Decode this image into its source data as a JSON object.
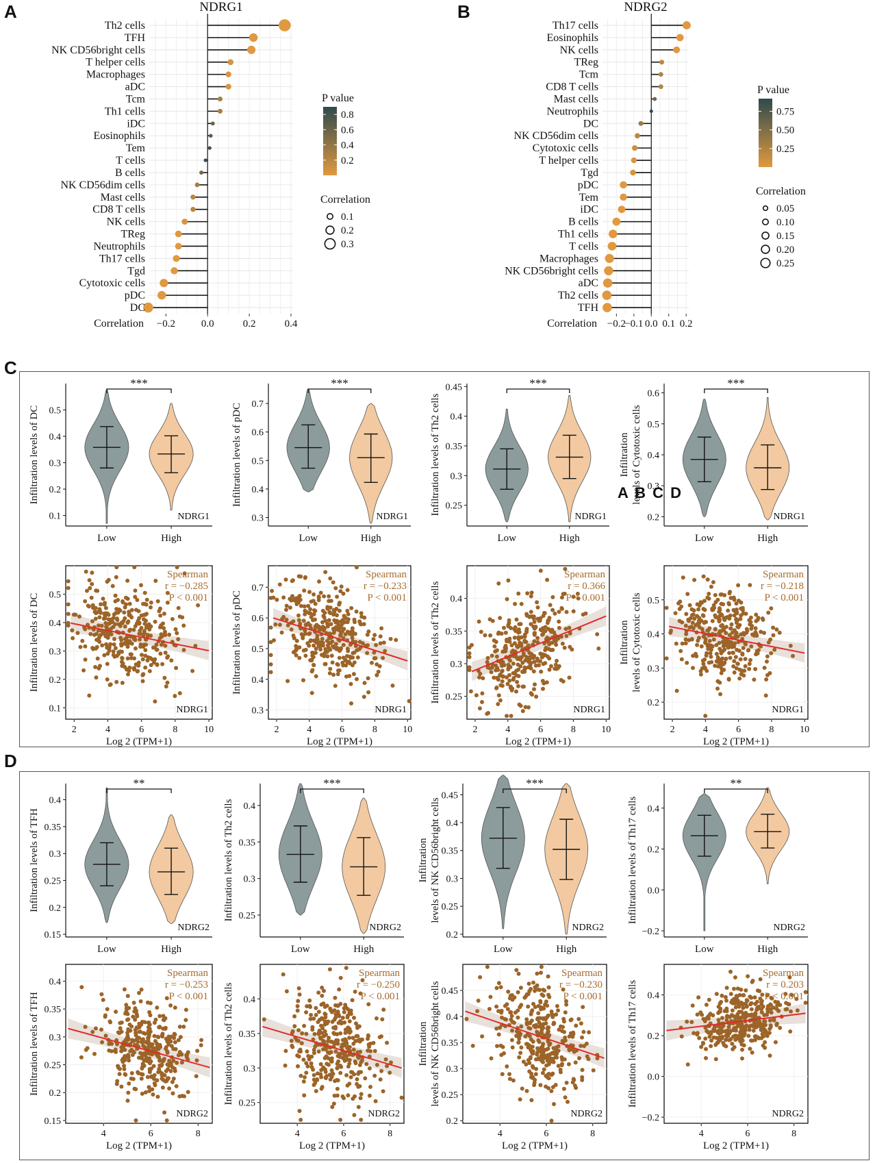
{
  "figure": {
    "panel_labels": [
      "A",
      "B",
      "C",
      "D"
    ],
    "stray_text": "A B C D"
  },
  "colors": {
    "p_high": "#2f4a4e",
    "p_low": "#e0993f",
    "violin_low": "#8c9b9b",
    "violin_high": "#f2c9a0",
    "scatter_point": "#9c6428",
    "fit_line": "#e32a2a",
    "fit_band": "#e6ddd6",
    "stats_text": "#a56b2c"
  },
  "lollipop_A": {
    "title": "NDRG1",
    "xlabel": "Correlation",
    "ticks": [
      -0.2,
      0.0,
      0.2,
      0.4
    ],
    "tick_labels": [
      "−0.2",
      "0.0",
      "0.2",
      "0.4"
    ],
    "xlim": [
      -0.28,
      0.41
    ],
    "legend_p_title": "P value",
    "legend_p_ticks": [
      "0.8",
      "0.6",
      "0.4",
      "0.2"
    ],
    "legend_p_tick_values": [
      0.8,
      0.6,
      0.4,
      0.2
    ],
    "legend_p_range": [
      0.0,
      0.9
    ],
    "legend_corr_title": "Correlation",
    "legend_corr_labels": [
      "0.1",
      "0.2",
      "0.3"
    ],
    "legend_corr_values": [
      0.1,
      0.2,
      0.3
    ],
    "chart_data": {
      "type": "lollipop",
      "categories": [
        "Th2 cells",
        "TFH",
        "NK CD56bright cells",
        "T helper cells",
        "Macrophages",
        "aDC",
        "Tcm",
        "Th1 cells",
        "iDC",
        "Eosinophils",
        "Tem",
        "T cells",
        "B cells",
        "NK CD56dim cells",
        "Mast cells",
        "CD8 T cells",
        "NK cells",
        "TReg",
        "Neutrophils",
        "Th17 cells",
        "Tgd",
        "Cytotoxic cells",
        "pDC",
        "DC"
      ],
      "values": [
        0.37,
        0.22,
        0.21,
        0.11,
        0.1,
        0.1,
        0.06,
        0.06,
        0.025,
        0.015,
        0.01,
        -0.01,
        -0.03,
        -0.05,
        -0.07,
        -0.07,
        -0.11,
        -0.14,
        -0.14,
        -0.15,
        -0.16,
        -0.21,
        -0.22,
        -0.285
      ],
      "pvalues": [
        0.0,
        0.0,
        0.0,
        0.05,
        0.05,
        0.05,
        0.3,
        0.3,
        0.6,
        0.7,
        0.8,
        0.85,
        0.55,
        0.3,
        0.2,
        0.2,
        0.05,
        0.0,
        0.0,
        0.0,
        0.0,
        0.0,
        0.0,
        0.0
      ]
    }
  },
  "lollipop_B": {
    "title": "NDRG2",
    "xlabel": "Correlation",
    "ticks": [
      -0.2,
      -0.1,
      0.0,
      0.1,
      0.2
    ],
    "tick_labels": [
      "−0.2",
      "−0.1",
      "0.0",
      "0.1",
      "0.2"
    ],
    "xlim": [
      -0.28,
      0.215
    ],
    "legend_p_title": "P value",
    "legend_p_ticks": [
      "0.75",
      "0.50",
      "0.25"
    ],
    "legend_p_tick_values": [
      0.75,
      0.5,
      0.25
    ],
    "legend_p_range": [
      0.0,
      0.92
    ],
    "legend_corr_title": "Correlation",
    "legend_corr_labels": [
      "0.05",
      "0.10",
      "0.15",
      "0.20",
      "0.25"
    ],
    "legend_corr_values": [
      0.05,
      0.1,
      0.15,
      0.2,
      0.25
    ],
    "chart_data": {
      "type": "lollipop",
      "categories": [
        "Th17 cells",
        "Eosinophils",
        "NK cells",
        "TReg",
        "Tcm",
        "CD8 T cells",
        "Mast cells",
        "Neutrophils",
        "DC",
        "NK CD56dim cells",
        "Cytotoxic cells",
        "T helper cells",
        "Tgd",
        "pDC",
        "Tem",
        "iDC",
        "B cells",
        "Th1 cells",
        "T cells",
        "Macrophages",
        "NK CD56bright cells",
        "aDC",
        "Th2 cells",
        "TFH"
      ],
      "values": [
        0.203,
        0.165,
        0.145,
        0.06,
        0.055,
        0.055,
        0.02,
        0.0,
        -0.06,
        -0.08,
        -0.095,
        -0.1,
        -0.105,
        -0.16,
        -0.16,
        -0.17,
        -0.2,
        -0.22,
        -0.225,
        -0.24,
        -0.245,
        -0.25,
        -0.255,
        -0.253
      ],
      "pvalues": [
        0.0,
        0.0,
        0.0,
        0.2,
        0.25,
        0.25,
        0.6,
        0.92,
        0.35,
        0.2,
        0.1,
        0.05,
        0.05,
        0.0,
        0.0,
        0.0,
        0.0,
        0.0,
        0.0,
        0.0,
        0.0,
        0.0,
        0.0,
        0.0
      ]
    }
  },
  "violins_C": [
    {
      "ylabel": "Infiltration levels of DC",
      "ylabel2": "",
      "sig": "***",
      "gene": "NDRG1",
      "groups": [
        "Low",
        "High"
      ],
      "ticks": [
        0.1,
        0.2,
        0.3,
        0.4,
        0.5
      ],
      "ylim": [
        0.06,
        0.6
      ],
      "chart_data": {
        "type": "violin",
        "groups": [
          "Low",
          "High"
        ],
        "mean": [
          0.358,
          0.333
        ],
        "sd_low": [
          0.28,
          0.262
        ],
        "sd_high": [
          0.437,
          0.402
        ],
        "min": [
          0.07,
          0.12
        ],
        "max": [
          0.575,
          0.525
        ]
      }
    },
    {
      "ylabel": "Infiltration levels of pDC",
      "ylabel2": "",
      "sig": "***",
      "gene": "NDRG1",
      "groups": [
        "Low",
        "High"
      ],
      "ticks": [
        0.3,
        0.4,
        0.5,
        0.6,
        0.7
      ],
      "ylim": [
        0.27,
        0.77
      ],
      "chart_data": {
        "type": "violin",
        "groups": [
          "Low",
          "High"
        ],
        "mean": [
          0.545,
          0.51
        ],
        "sd_low": [
          0.473,
          0.423
        ],
        "sd_high": [
          0.625,
          0.593
        ],
        "min": [
          0.39,
          0.28
        ],
        "max": [
          0.75,
          0.7
        ]
      }
    },
    {
      "ylabel": "Infiltration levels of Th2 cells",
      "ylabel2": "",
      "sig": "***",
      "gene": "NDRG1",
      "groups": [
        "Low",
        "High"
      ],
      "ticks": [
        0.25,
        0.3,
        0.35,
        0.4,
        0.45
      ],
      "ylim": [
        0.215,
        0.455
      ],
      "chart_data": {
        "type": "violin",
        "groups": [
          "Low",
          "High"
        ],
        "mean": [
          0.311,
          0.331
        ],
        "sd_low": [
          0.277,
          0.295
        ],
        "sd_high": [
          0.345,
          0.368
        ],
        "min": [
          0.222,
          0.222
        ],
        "max": [
          0.412,
          0.435
        ]
      }
    },
    {
      "ylabel": "Infiltration",
      "ylabel2": "levels of Cytotoxic cells",
      "sig": "***",
      "gene": "NDRG1",
      "groups": [
        "Low",
        "High"
      ],
      "ticks": [
        0.2,
        0.3,
        0.4,
        0.5,
        0.6
      ],
      "ylim": [
        0.17,
        0.63
      ],
      "chart_data": {
        "type": "violin",
        "groups": [
          "Low",
          "High"
        ],
        "mean": [
          0.385,
          0.358
        ],
        "sd_low": [
          0.313,
          0.288
        ],
        "sd_high": [
          0.457,
          0.432
        ],
        "min": [
          0.2,
          0.19
        ],
        "max": [
          0.58,
          0.585
        ]
      }
    }
  ],
  "scatters_C": [
    {
      "ylabel": "Infiltration levels of DC",
      "ylabel2": "",
      "xlabel": "Log 2 (TPM+1)",
      "gene": "NDRG1",
      "stat_title": "Spearman",
      "r_text": "r = −0.285",
      "p_text": "P < 0.001",
      "xticks": [
        2,
        4,
        6,
        8,
        10
      ],
      "yticks": [
        0.1,
        0.2,
        0.3,
        0.4,
        0.5
      ],
      "xlim": [
        1.5,
        10.2
      ],
      "ylim": [
        0.06,
        0.6
      ],
      "chart_data": {
        "type": "scatter",
        "spearman_r": -0.285,
        "fit": {
          "x": [
            1.8,
            10
          ],
          "y": [
            0.398,
            0.301
          ]
        },
        "center": [
          5.0,
          0.37
        ],
        "spread": [
          1.5,
          0.085
        ],
        "n": 360,
        "seed": 11
      }
    },
    {
      "ylabel": "Infiltration levels of pDC",
      "ylabel2": "",
      "xlabel": "Log 2 (TPM+1)",
      "gene": "NDRG1",
      "stat_title": "Spearman",
      "r_text": "r = −0.233",
      "p_text": "P < 0.001",
      "xticks": [
        2,
        4,
        6,
        8,
        10
      ],
      "yticks": [
        0.3,
        0.4,
        0.5,
        0.6,
        0.7
      ],
      "xlim": [
        1.5,
        10.2
      ],
      "ylim": [
        0.27,
        0.77
      ],
      "chart_data": {
        "type": "scatter",
        "spearman_r": -0.233,
        "fit": {
          "x": [
            1.8,
            10
          ],
          "y": [
            0.6,
            0.46
          ]
        },
        "center": [
          5.0,
          0.53
        ],
        "spread": [
          1.5,
          0.08
        ],
        "n": 360,
        "seed": 23
      }
    },
    {
      "ylabel": "Infiltration levels of Th2 cells",
      "ylabel2": "",
      "xlabel": "Log 2 (TPM+1)",
      "gene": "NDRG1",
      "stat_title": "Spearman",
      "r_text": "r = 0.366",
      "p_text": "P < 0.001",
      "xticks": [
        2,
        4,
        6,
        8,
        10
      ],
      "yticks": [
        0.25,
        0.3,
        0.35,
        0.4
      ],
      "xlim": [
        1.5,
        10.2
      ],
      "ylim": [
        0.215,
        0.45
      ],
      "chart_data": {
        "type": "scatter",
        "spearman_r": 0.366,
        "fit": {
          "x": [
            1.8,
            10
          ],
          "y": [
            0.288,
            0.373
          ]
        },
        "center": [
          5.2,
          0.322
        ],
        "spread": [
          1.5,
          0.038
        ],
        "n": 360,
        "seed": 37
      }
    },
    {
      "ylabel": "Infiltration",
      "ylabel2": "levels of Cytotoxic cells",
      "xlabel": "Log 2 (TPM+1)",
      "gene": "NDRG1",
      "stat_title": "Spearman",
      "r_text": "r = −0.218",
      "p_text": "P < 0.001",
      "xticks": [
        2,
        4,
        6,
        8,
        10
      ],
      "yticks": [
        0.2,
        0.3,
        0.4,
        0.5
      ],
      "xlim": [
        1.5,
        10.2
      ],
      "ylim": [
        0.15,
        0.6
      ],
      "chart_data": {
        "type": "scatter",
        "spearman_r": -0.218,
        "fit": {
          "x": [
            1.8,
            10
          ],
          "y": [
            0.422,
            0.344
          ]
        },
        "center": [
          5.0,
          0.39
        ],
        "spread": [
          1.5,
          0.07
        ],
        "n": 360,
        "seed": 49
      }
    }
  ],
  "violins_D": [
    {
      "ylabel": "Infiltration levels of TFH",
      "ylabel2": "",
      "sig": "**",
      "gene": "NDRG2",
      "groups": [
        "Low",
        "High"
      ],
      "ticks": [
        0.15,
        0.2,
        0.25,
        0.3,
        0.35,
        0.4
      ],
      "ylim": [
        0.145,
        0.43
      ],
      "chart_data": {
        "type": "violin",
        "groups": [
          "Low",
          "High"
        ],
        "mean": [
          0.28,
          0.266
        ],
        "sd_low": [
          0.24,
          0.224
        ],
        "sd_high": [
          0.32,
          0.31
        ],
        "min": [
          0.172,
          0.17
        ],
        "max": [
          0.422,
          0.372
        ]
      }
    },
    {
      "ylabel": "Infiltration levels of Th2 cells",
      "ylabel2": "",
      "sig": "***",
      "gene": "NDRG2",
      "groups": [
        "Low",
        "High"
      ],
      "ticks": [
        0.25,
        0.3,
        0.35,
        0.4
      ],
      "ylim": [
        0.22,
        0.43
      ],
      "chart_data": {
        "type": "violin",
        "groups": [
          "Low",
          "High"
        ],
        "mean": [
          0.333,
          0.316
        ],
        "sd_low": [
          0.295,
          0.277
        ],
        "sd_high": [
          0.372,
          0.356
        ],
        "min": [
          0.25,
          0.225
        ],
        "max": [
          0.43,
          0.41
        ]
      }
    },
    {
      "ylabel": "Infiltration",
      "ylabel2": "levels of NK CD56bright cells",
      "sig": "***",
      "gene": "NDRG2",
      "groups": [
        "Low",
        "High"
      ],
      "ticks": [
        0.2,
        0.25,
        0.3,
        0.35,
        0.4,
        0.45
      ],
      "ylim": [
        0.195,
        0.47
      ],
      "chart_data": {
        "type": "violin",
        "groups": [
          "Low",
          "High"
        ],
        "mean": [
          0.372,
          0.352
        ],
        "sd_low": [
          0.318,
          0.298
        ],
        "sd_high": [
          0.427,
          0.406
        ],
        "min": [
          0.21,
          0.2
        ],
        "max": [
          0.485,
          0.47
        ]
      }
    },
    {
      "ylabel": "Infiltration levels of Th17 cells",
      "ylabel2": "",
      "sig": "**",
      "gene": "NDRG2",
      "groups": [
        "Low",
        "High"
      ],
      "ticks": [
        -0.2,
        0.0,
        0.2,
        0.4
      ],
      "ylim": [
        -0.23,
        0.52
      ],
      "chart_data": {
        "type": "violin",
        "groups": [
          "Low",
          "High"
        ],
        "mean": [
          0.265,
          0.285
        ],
        "sd_low": [
          0.165,
          0.205
        ],
        "sd_high": [
          0.365,
          0.37
        ],
        "min": [
          -0.2,
          0.03
        ],
        "max": [
          0.47,
          0.5
        ]
      }
    }
  ],
  "scatters_D": [
    {
      "ylabel": "Infiltration levels of TFH",
      "ylabel2": "",
      "xlabel": "Log 2 (TPM+1)",
      "gene": "NDRG2",
      "stat_title": "Spearman",
      "r_text": "r = −0.253",
      "p_text": "P < 0.001",
      "xticks": [
        4,
        6,
        8
      ],
      "yticks": [
        0.15,
        0.2,
        0.25,
        0.3,
        0.35,
        0.4
      ],
      "xlim": [
        2.4,
        8.6
      ],
      "ylim": [
        0.145,
        0.43
      ],
      "chart_data": {
        "type": "scatter",
        "spearman_r": -0.253,
        "fit": {
          "x": [
            2.5,
            8.5
          ],
          "y": [
            0.315,
            0.245
          ]
        },
        "center": [
          5.7,
          0.275
        ],
        "spread": [
          1.0,
          0.04
        ],
        "n": 360,
        "seed": 61
      }
    },
    {
      "ylabel": "Infiltration levels of Th2 cells",
      "ylabel2": "",
      "xlabel": "Log 2 (TPM+1)",
      "gene": "NDRG2",
      "stat_title": "Spearman",
      "r_text": "r = −0.250",
      "p_text": "P < 0.001",
      "xticks": [
        4,
        6,
        8
      ],
      "yticks": [
        0.25,
        0.3,
        0.35,
        0.4
      ],
      "xlim": [
        2.4,
        8.6
      ],
      "ylim": [
        0.22,
        0.45
      ],
      "chart_data": {
        "type": "scatter",
        "spearman_r": -0.25,
        "fit": {
          "x": [
            2.5,
            8.5
          ],
          "y": [
            0.36,
            0.3
          ]
        },
        "center": [
          5.7,
          0.325
        ],
        "spread": [
          1.0,
          0.04
        ],
        "n": 360,
        "seed": 73
      }
    },
    {
      "ylabel": "Infiltration",
      "ylabel2": "levels of NK CD56bright cells",
      "xlabel": "Log 2 (TPM+1)",
      "gene": "NDRG2",
      "stat_title": "Spearman",
      "r_text": "r = −0.230",
      "p_text": "P < 0.001",
      "xticks": [
        4,
        6,
        8
      ],
      "yticks": [
        0.2,
        0.25,
        0.3,
        0.35,
        0.4,
        0.45
      ],
      "xlim": [
        2.4,
        8.6
      ],
      "ylim": [
        0.195,
        0.5
      ],
      "chart_data": {
        "type": "scatter",
        "spearman_r": -0.23,
        "fit": {
          "x": [
            2.5,
            8.5
          ],
          "y": [
            0.41,
            0.32
          ]
        },
        "center": [
          5.7,
          0.36
        ],
        "spread": [
          1.0,
          0.05
        ],
        "n": 360,
        "seed": 89
      }
    },
    {
      "ylabel": "Infiltration levels of Th17 cells",
      "ylabel2": "",
      "xlabel": "Log 2 (TPM+1)",
      "gene": "NDRG2",
      "stat_title": "Spearman",
      "r_text": "r = 0.203",
      "p_text": "P < 0.001",
      "xticks": [
        4,
        6,
        8
      ],
      "yticks": [
        -0.2,
        0.0,
        0.2,
        0.4
      ],
      "xlim": [
        2.4,
        8.6
      ],
      "ylim": [
        -0.23,
        0.55
      ],
      "chart_data": {
        "type": "scatter",
        "spearman_r": 0.203,
        "fit": {
          "x": [
            2.5,
            8.5
          ],
          "y": [
            0.225,
            0.31
          ]
        },
        "center": [
          5.7,
          0.27
        ],
        "spread": [
          1.0,
          0.08
        ],
        "n": 360,
        "seed": 97
      }
    }
  ]
}
